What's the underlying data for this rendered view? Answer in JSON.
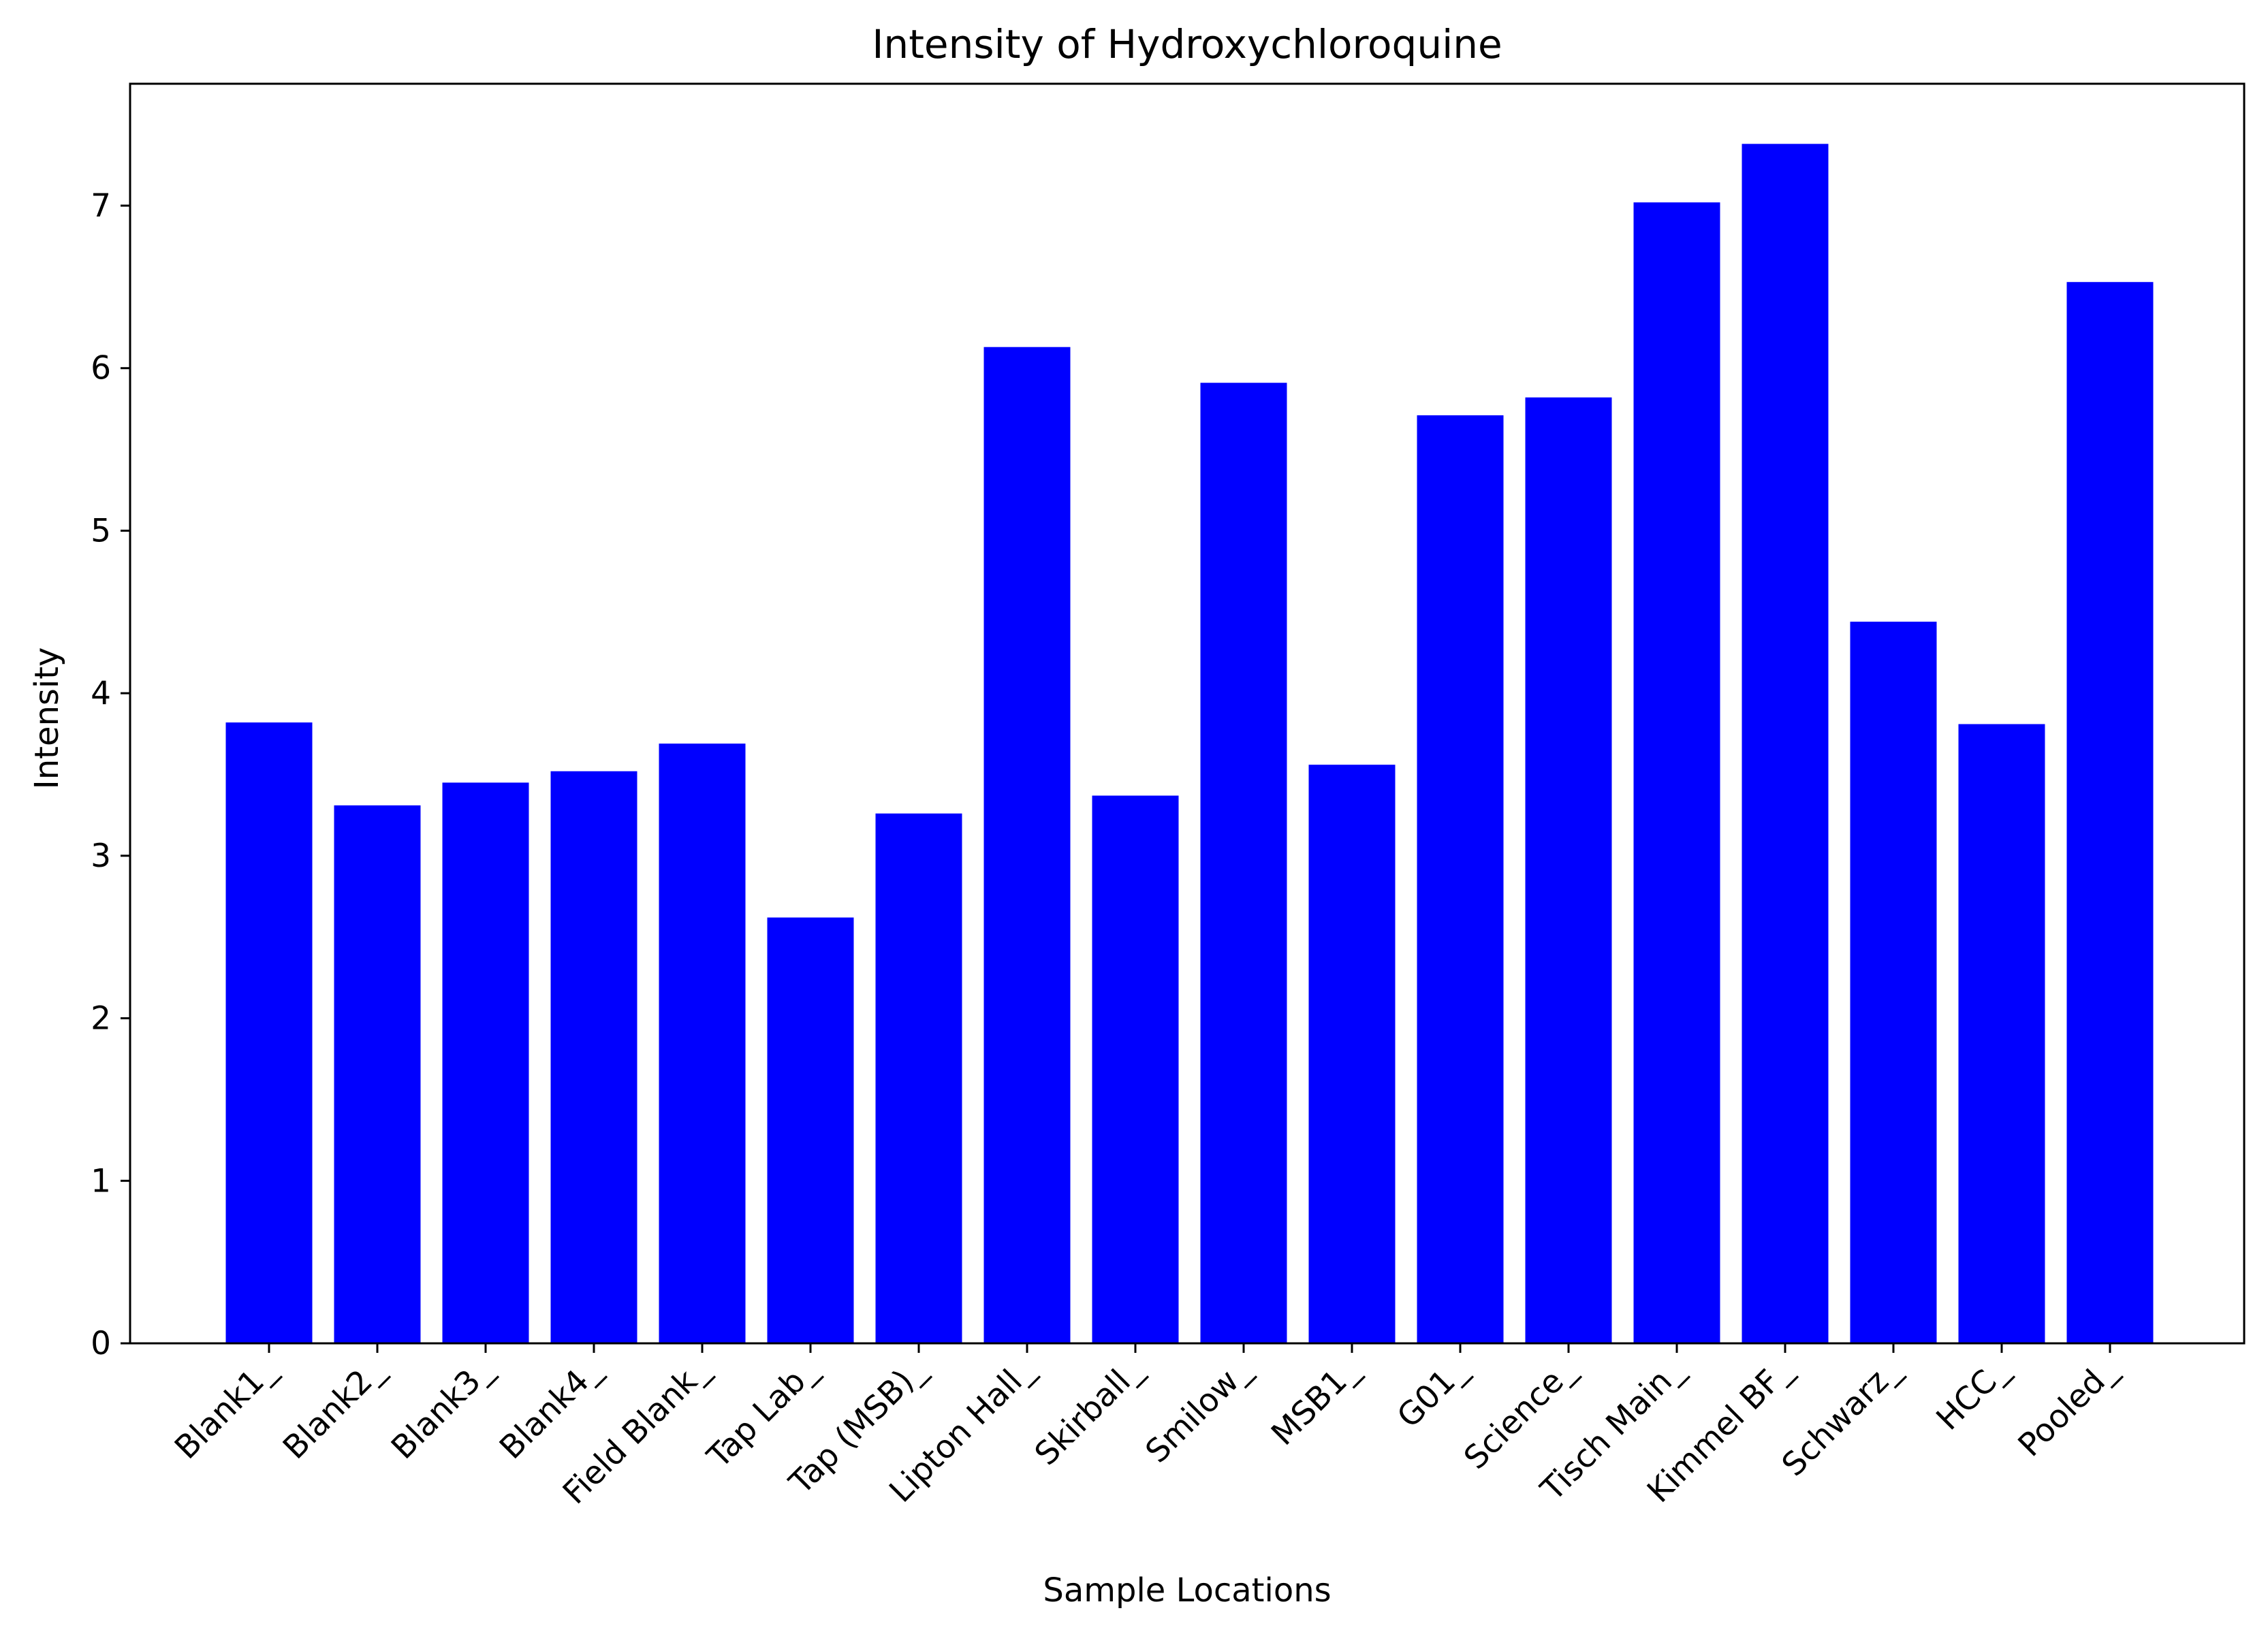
{
  "chart_data": {
    "type": "bar",
    "title": "Intensity of Hydroxychloroquine",
    "xlabel": "Sample Locations",
    "ylabel": "Intensity",
    "categories": [
      "Blank1_",
      "Blank2_",
      "Blank3_",
      "Blank4_",
      "Field Blank_",
      "Tap Lab_",
      "Tap (MSB)_",
      "Lipton Hall_",
      "Skirball_",
      "Smilow_",
      "MSB1_",
      "G01_",
      "Science_",
      "Tisch Main_",
      "Kimmel BF_",
      "Schwarz_",
      "HCC_",
      "Pooled_"
    ],
    "values": [
      3.82,
      3.31,
      3.45,
      3.52,
      3.69,
      2.62,
      3.26,
      6.13,
      3.37,
      5.91,
      3.56,
      5.71,
      5.82,
      7.02,
      7.38,
      4.44,
      3.81,
      6.53
    ],
    "ylim": [
      0,
      7.75
    ],
    "yticks": [
      0,
      1,
      2,
      3,
      4,
      5,
      6,
      7
    ],
    "bar_color": "#0000ff",
    "grid": false,
    "x_tick_rotation": "45 degrees"
  }
}
